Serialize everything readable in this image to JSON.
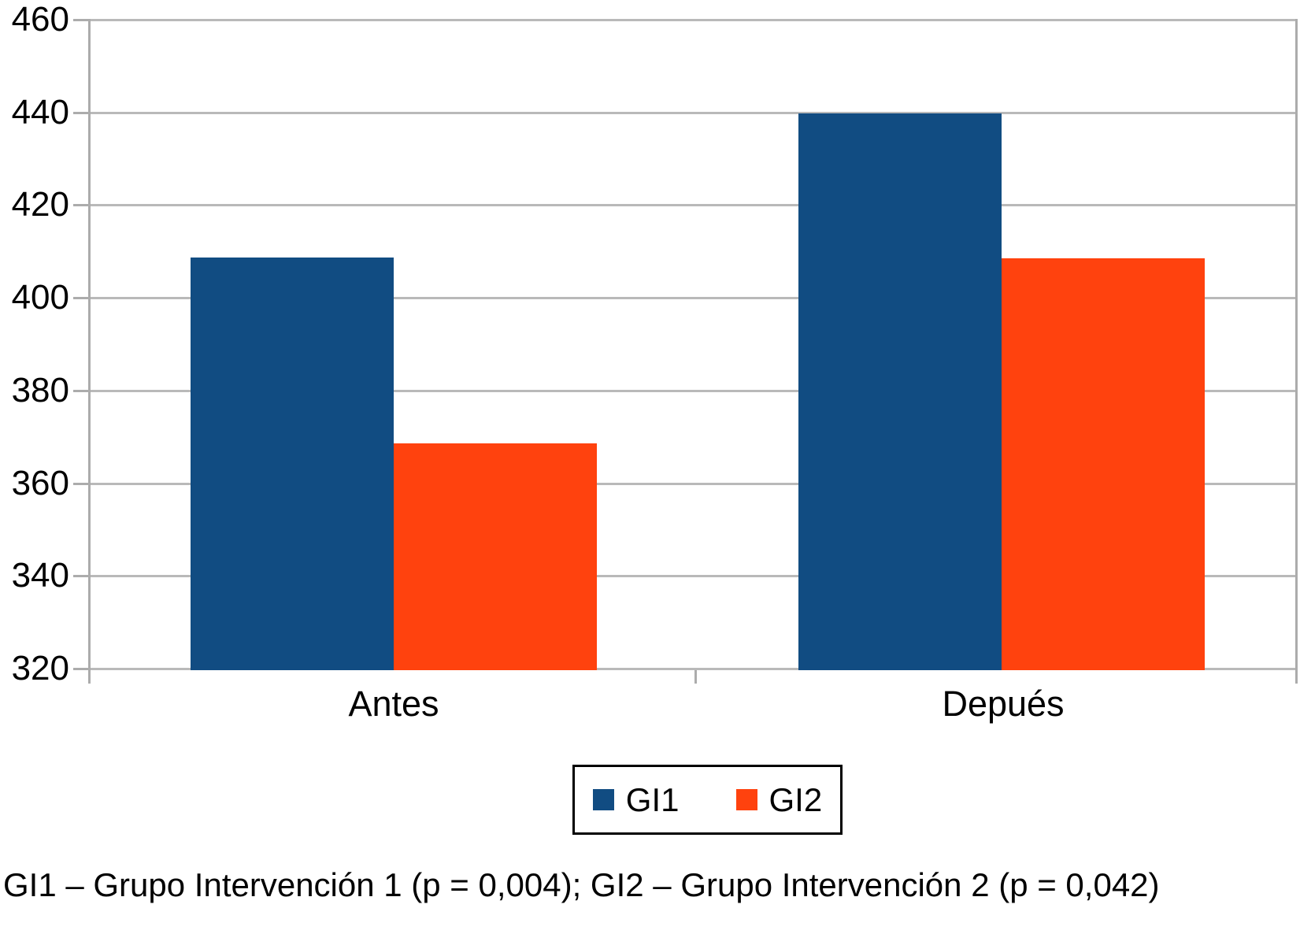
{
  "chart_data": {
    "type": "bar",
    "title": "",
    "categories": [
      "Antes",
      "Depués"
    ],
    "series": [
      {
        "name": "GI1",
        "color": "#114C82",
        "values": [
          408.5,
          439.6
        ]
      },
      {
        "name": "GI2",
        "color": "#FF420E",
        "values": [
          368.5,
          408.4
        ]
      }
    ],
    "ylim": [
      320,
      460
    ],
    "yticks": [
      320,
      340,
      360,
      380,
      400,
      420,
      440,
      460
    ],
    "xlabel": "",
    "ylabel": "",
    "grid": "horizontal",
    "legend_position": "bottom-center",
    "axis_color": "#ACACAC",
    "grid_color": "#B9B9B9",
    "background": "#FFFFFF",
    "text_color": "#000000"
  },
  "caption": "GI1 – Grupo Intervención 1 (p = 0,004); GI2 – Grupo Intervención 2 (p = 0,042)"
}
